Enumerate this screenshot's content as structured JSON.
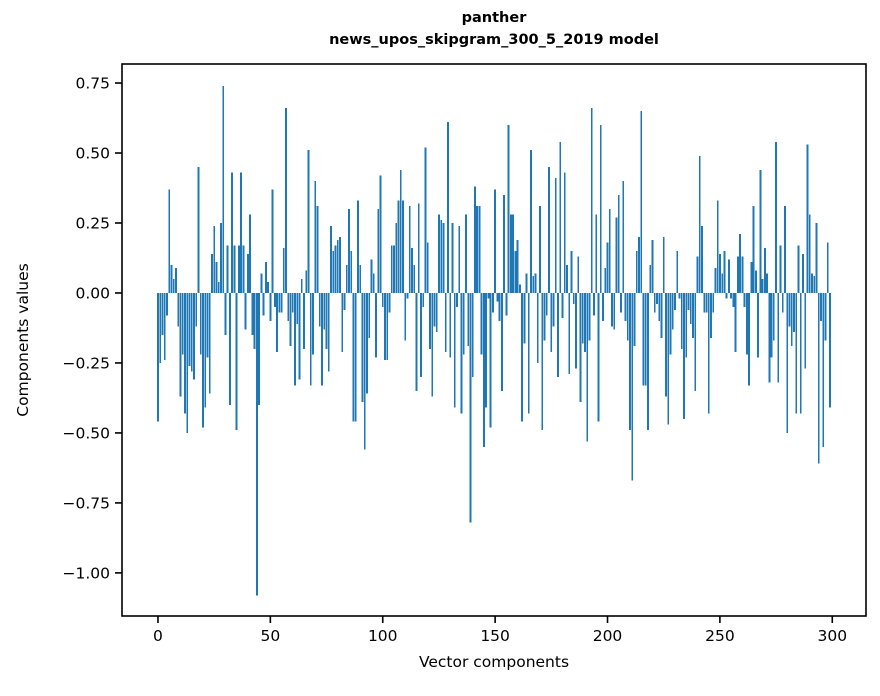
{
  "figure": {
    "title_line1": "panther",
    "title_line2": "news_upos_skipgram_300_5_2019 model",
    "xlabel": "Vector components",
    "ylabel": "Components values",
    "background_color": "#ffffff",
    "bar_color": "#1f77b4",
    "spine_color": "#000000",
    "text_color": "#000000"
  },
  "chart_data": {
    "type": "bar",
    "title": "panther\nnews_upos_skipgram_300_5_2019 model",
    "xlabel": "Vector components",
    "ylabel": "Components values",
    "legend": null,
    "grid": false,
    "n_components": 300,
    "bar_width_units": 0.8,
    "x_ticks": [
      0,
      50,
      100,
      150,
      200,
      250,
      300
    ],
    "y_ticks": [
      0.75,
      0.5,
      0.25,
      0.0,
      -0.25,
      -0.5,
      -0.75,
      -1.0
    ],
    "xlim": [
      -16,
      315
    ],
    "ylim": [
      -1.154,
      0.818
    ],
    "x": "component index 0..299",
    "values": [
      -0.46,
      -0.25,
      -0.15,
      -0.24,
      -0.08,
      0.37,
      0.1,
      0.05,
      0.09,
      -0.12,
      -0.37,
      -0.22,
      -0.43,
      -0.5,
      -0.26,
      -0.28,
      -0.31,
      -0.12,
      0.45,
      -0.22,
      -0.48,
      -0.41,
      -0.23,
      -0.36,
      0.14,
      0.24,
      0.11,
      0.04,
      0.25,
      0.74,
      -0.15,
      0.17,
      -0.4,
      0.43,
      0.17,
      -0.49,
      0.17,
      0.43,
      0.17,
      -0.13,
      0.14,
      0.28,
      -0.15,
      -0.2,
      -1.08,
      -0.4,
      0.07,
      -0.08,
      0.11,
      0.04,
      -0.1,
      0.37,
      -0.05,
      -0.21,
      -0.07,
      -0.07,
      0.16,
      0.66,
      -0.1,
      -0.19,
      -0.07,
      -0.33,
      -0.11,
      -0.31,
      0.05,
      -0.2,
      0.08,
      0.51,
      -0.33,
      -0.22,
      0.4,
      0.31,
      -0.12,
      -0.33,
      -0.13,
      -0.2,
      -0.28,
      0.24,
      0.15,
      0.17,
      0.19,
      0.2,
      -0.21,
      -0.06,
      0.1,
      0.3,
      0.15,
      -0.46,
      -0.46,
      0.33,
      0.1,
      -0.39,
      -0.56,
      -0.36,
      -0.16,
      0.12,
      0.07,
      -0.23,
      0.3,
      0.42,
      -0.05,
      -0.24,
      -0.24,
      -0.07,
      0.17,
      0.17,
      0.25,
      0.33,
      0.44,
      0.33,
      -0.17,
      -0.02,
      0.31,
      0.16,
      0.1,
      -0.35,
      0.32,
      -0.3,
      -0.05,
      0.52,
      0.18,
      -0.2,
      -0.37,
      -0.12,
      -0.14,
      0.28,
      0.26,
      0.25,
      -0.21,
      0.61,
      -0.23,
      0.25,
      -0.41,
      -0.05,
      0.24,
      -0.43,
      -0.22,
      0.28,
      -0.19,
      -0.82,
      -0.3,
      0.38,
      0.31,
      0.31,
      -0.22,
      -0.55,
      -0.41,
      -0.02,
      -0.48,
      -0.07,
      0.37,
      -0.03,
      -0.1,
      -0.35,
      0.35,
      -0.08,
      0.6,
      0.28,
      0.28,
      0.15,
      0.19,
      0.03,
      -0.46,
      -0.18,
      0.07,
      -0.43,
      0.51,
      0.06,
      0.07,
      -0.25,
      0.31,
      -0.49,
      -0.17,
      -0.08,
      0.45,
      -0.21,
      -0.12,
      0.41,
      -0.3,
      0.54,
      -0.09,
      0.43,
      0.1,
      -0.29,
      0.15,
      -0.04,
      -0.27,
      0.13,
      -0.39,
      -0.18,
      -0.21,
      -0.53,
      -0.17,
      0.66,
      -0.08,
      0.28,
      -0.46,
      0.6,
      -0.1,
      0.09,
      0.18,
      0.3,
      -0.12,
      -0.13,
      0.27,
      0.35,
      -0.07,
      0.4,
      -0.1,
      -0.17,
      -0.49,
      -0.67,
      -0.19,
      0.15,
      0.2,
      0.65,
      -0.33,
      -0.33,
      -0.49,
      0.1,
      0.19,
      -0.07,
      -0.04,
      -0.1,
      -0.16,
      0.2,
      -0.37,
      -0.47,
      -0.22,
      -0.13,
      -0.06,
      0.15,
      -0.02,
      -0.2,
      -0.45,
      -0.23,
      -0.06,
      -0.11,
      -0.16,
      -0.35,
      0.13,
      0.49,
      0.24,
      -0.07,
      -0.07,
      -0.43,
      -0.16,
      -0.07,
      0.09,
      0.33,
      0.14,
      0.07,
      0.15,
      -0.02,
      0.12,
      -0.02,
      -0.05,
      -0.21,
      0.13,
      0.21,
      0.13,
      -0.05,
      -0.22,
      -0.33,
      0.11,
      0.31,
      0.08,
      -0.23,
      0.44,
      0.05,
      0.16,
      0.07,
      -0.32,
      -0.23,
      -0.17,
      0.54,
      -0.32,
      0.17,
      -0.07,
      0.31,
      -0.5,
      -0.12,
      -0.19,
      -0.14,
      -0.43,
      0.17,
      -0.43,
      0.14,
      -0.27,
      0.53,
      0.28,
      0.07,
      0.06,
      0.25,
      -0.61,
      -0.1,
      -0.55,
      -0.17,
      0.18,
      -0.41
    ]
  }
}
